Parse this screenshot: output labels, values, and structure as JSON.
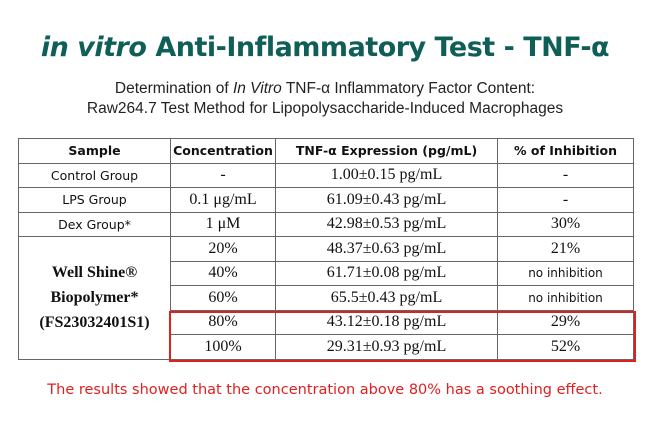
{
  "header": {
    "title_italic": "in vitro",
    "title_rest": "Anti-Inflammatory Test - TNF-α",
    "subtitle1_a": "Determination of",
    "subtitle1_italic": "In Vitro",
    "subtitle1_b": "TNF-α Inflammatory Factor Content:",
    "subtitle2": "Raw264.7 Test Method for Lipopolysaccharide-Induced Macrophages"
  },
  "table": {
    "header": [
      "Sample",
      "Concentration",
      "TNF-α Expression (pg/mL)",
      "% of Inhibition"
    ],
    "rows": [
      [
        "Control Group",
        "-",
        "1.00±0.15 pg/mL",
        "-"
      ],
      [
        "LPS Group",
        "0.1 μg/mL",
        "61.09±0.43 pg/mL",
        "-"
      ],
      [
        "Dex Group*",
        "1 μM",
        "42.98±0.53 pg/mL",
        "30%"
      ]
    ],
    "group": {
      "lines": [
        "Well Shine®",
        "Biopolymer*",
        "(FS23032401S1)"
      ],
      "rows": [
        [
          "20%",
          "48.37±0.63 pg/mL",
          "21%"
        ],
        [
          "40%",
          "61.71±0.08 pg/mL",
          "no inhibition"
        ],
        [
          "60%",
          "65.5±0.43 pg/mL",
          "no inhibition"
        ],
        [
          "80%",
          "43.12±0.18 pg/mL",
          "29%"
        ],
        [
          "100%",
          "29.31±0.93 pg/mL",
          "52%"
        ]
      ]
    }
  },
  "footer": "The results showed that the concentration above 80% has a soothing effect."
}
